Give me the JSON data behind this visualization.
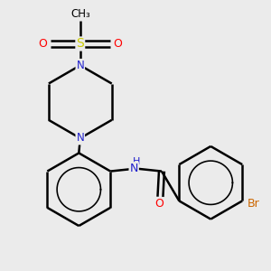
{
  "bg_color": "#ebebeb",
  "atom_colors": {
    "C": "#000000",
    "N": "#2020cc",
    "O": "#ff0000",
    "S": "#cccc00",
    "Br": "#cc6600",
    "H": "#404040"
  },
  "bond_color": "#000000",
  "bond_width": 1.8,
  "figsize": [
    3.0,
    3.0
  ],
  "dpi": 100,
  "xlim": [
    0.0,
    1.0
  ],
  "ylim": [
    0.0,
    1.0
  ]
}
